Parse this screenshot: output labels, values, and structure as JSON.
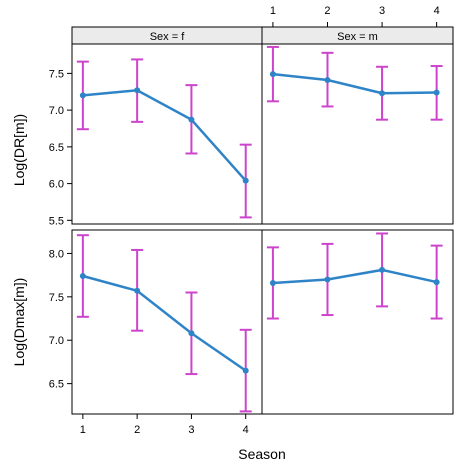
{
  "chart_data": {
    "type": "line",
    "layout": "lattice 2x2 panels, shared x axis, error bars",
    "xlabel": "Season",
    "x": [
      1,
      2,
      3,
      4
    ],
    "x_ticks": [
      "1",
      "2",
      "3",
      "4"
    ],
    "xlim": [
      0.8,
      4.3
    ],
    "strips": [
      "Sex = f",
      "Sex = m"
    ],
    "series_color": "#2f84c8",
    "errorbar_color": "#cc44cc",
    "strip_color": "#ebebeb",
    "rows": [
      {
        "ylabel": "Log(DR[m])",
        "ylim": [
          5.45,
          7.9
        ],
        "y_ticks": [
          "5.5",
          "6.0",
          "6.5",
          "7.0",
          "7.5"
        ],
        "y_tick_values": [
          5.5,
          6.0,
          6.5,
          7.0,
          7.5
        ],
        "panels": [
          {
            "strip": "Sex = f",
            "values": [
              7.2,
              7.27,
              6.87,
              6.04
            ],
            "lower": [
              6.74,
              6.84,
              6.41,
              5.54
            ],
            "upper": [
              7.66,
              7.69,
              7.34,
              6.53
            ]
          },
          {
            "strip": "Sex = m",
            "values": [
              7.49,
              7.41,
              7.23,
              7.24
            ],
            "lower": [
              7.12,
              7.05,
              6.87,
              6.87
            ],
            "upper": [
              7.86,
              7.78,
              7.59,
              7.6
            ]
          }
        ]
      },
      {
        "ylabel": "Log(Dmax[m])",
        "ylim": [
          6.15,
          8.27
        ],
        "y_ticks": [
          "6.5",
          "7.0",
          "7.5",
          "8.0"
        ],
        "y_tick_values": [
          6.5,
          7.0,
          7.5,
          8.0
        ],
        "panels": [
          {
            "strip": "Sex = f",
            "values": [
              7.74,
              7.57,
              7.08,
              6.65
            ],
            "lower": [
              7.27,
              7.11,
              6.61,
              6.18
            ],
            "upper": [
              8.21,
              8.04,
              7.55,
              7.12
            ]
          },
          {
            "strip": "Sex = m",
            "values": [
              7.66,
              7.7,
              7.81,
              7.67
            ],
            "lower": [
              7.25,
              7.29,
              7.39,
              7.25
            ],
            "upper": [
              8.07,
              8.11,
              8.23,
              8.09
            ]
          }
        ]
      }
    ]
  }
}
